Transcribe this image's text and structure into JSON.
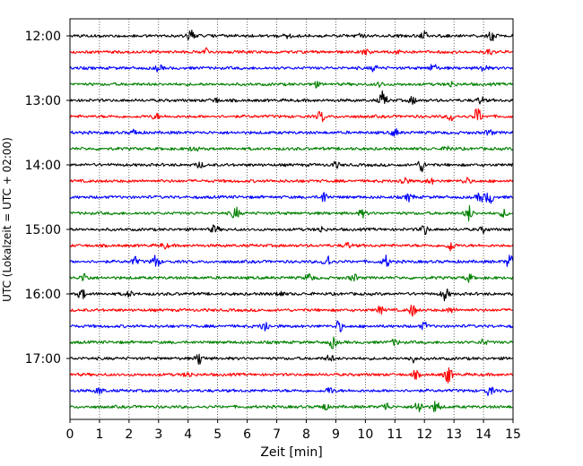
{
  "chart_data": {
    "type": "line",
    "title": "",
    "xlabel": "Zeit  [min]",
    "ylabel": "UTC (Lokalzeit = UTC + 02:00)",
    "xlim": [
      0,
      15
    ],
    "x_ticks": [
      "0",
      "1",
      "2",
      "3",
      "4",
      "5",
      "6",
      "7",
      "8",
      "9",
      "10",
      "11",
      "12",
      "13",
      "14",
      "15"
    ],
    "y_ticks": [
      "12:00",
      "13:00",
      "14:00",
      "15:00",
      "16:00",
      "17:00"
    ],
    "grid": "vertical dotted lines at each minute",
    "trace_interval_minutes": 15,
    "trace_colors": [
      "#000000",
      "#ff0000",
      "#0000ff",
      "#008000"
    ],
    "series": [
      {
        "start": "12:00",
        "color": "#000000",
        "events": [
          [
            4.1,
            0.9
          ],
          [
            7.4,
            0.5
          ],
          [
            12.0,
            0.6
          ],
          [
            14.3,
            0.6
          ],
          [
            9.8,
            0.4
          ]
        ]
      },
      {
        "start": "12:15",
        "color": "#ff0000",
        "events": [
          [
            4.6,
            0.5
          ],
          [
            10.0,
            0.4
          ],
          [
            11.2,
            0.4
          ],
          [
            14.2,
            0.4
          ]
        ]
      },
      {
        "start": "12:30",
        "color": "#0000ff",
        "events": [
          [
            3.0,
            0.4
          ],
          [
            10.3,
            0.4
          ],
          [
            12.3,
            0.6
          ],
          [
            14.0,
            0.5
          ]
        ]
      },
      {
        "start": "12:45",
        "color": "#008000",
        "events": [
          [
            8.3,
            0.4
          ],
          [
            10.5,
            0.3
          ],
          [
            12.9,
            0.4
          ]
        ]
      },
      {
        "start": "13:00",
        "color": "#000000",
        "events": [
          [
            10.6,
            1.3
          ],
          [
            11.6,
            0.5
          ],
          [
            13.9,
            0.5
          ],
          [
            4.9,
            0.4
          ]
        ]
      },
      {
        "start": "13:15",
        "color": "#ff0000",
        "events": [
          [
            8.5,
            0.8
          ],
          [
            12.9,
            0.6
          ],
          [
            13.8,
            1.2
          ],
          [
            2.9,
            0.4
          ]
        ]
      },
      {
        "start": "13:30",
        "color": "#0000ff",
        "events": [
          [
            2.2,
            0.4
          ],
          [
            11.0,
            0.5
          ],
          [
            14.2,
            0.4
          ]
        ]
      },
      {
        "start": "13:45",
        "color": "#008000",
        "events": [
          [
            4.2,
            0.4
          ],
          [
            12.8,
            0.4
          ]
        ]
      },
      {
        "start": "14:00",
        "color": "#000000",
        "events": [
          [
            11.9,
            0.9
          ],
          [
            4.4,
            0.4
          ],
          [
            9.0,
            0.4
          ]
        ]
      },
      {
        "start": "14:15",
        "color": "#ff0000",
        "events": [
          [
            11.3,
            0.7
          ],
          [
            12.2,
            0.4
          ],
          [
            13.4,
            0.5
          ]
        ]
      },
      {
        "start": "14:30",
        "color": "#0000ff",
        "events": [
          [
            8.6,
            0.8
          ],
          [
            11.5,
            0.6
          ],
          [
            14.2,
            1.0
          ],
          [
            13.9,
            0.7
          ]
        ]
      },
      {
        "start": "14:45",
        "color": "#008000",
        "events": [
          [
            5.6,
            0.9
          ],
          [
            9.9,
            0.5
          ],
          [
            13.5,
            1.1
          ],
          [
            14.7,
            0.5
          ]
        ]
      },
      {
        "start": "15:00",
        "color": "#000000",
        "events": [
          [
            4.9,
            0.6
          ],
          [
            8.5,
            0.4
          ],
          [
            12.0,
            0.7
          ],
          [
            14.0,
            0.4
          ]
        ]
      },
      {
        "start": "15:15",
        "color": "#ff0000",
        "events": [
          [
            3.2,
            0.4
          ],
          [
            12.9,
            0.8
          ],
          [
            9.4,
            0.4
          ]
        ]
      },
      {
        "start": "15:30",
        "color": "#0000ff",
        "events": [
          [
            2.9,
            1.0
          ],
          [
            8.7,
            1.0
          ],
          [
            10.7,
            0.8
          ],
          [
            14.9,
            1.1
          ],
          [
            2.2,
            0.6
          ]
        ]
      },
      {
        "start": "15:45",
        "color": "#008000",
        "events": [
          [
            0.5,
            0.7
          ],
          [
            8.1,
            0.6
          ],
          [
            9.6,
            0.5
          ],
          [
            13.5,
            0.5
          ]
        ]
      },
      {
        "start": "16:00",
        "color": "#000000",
        "events": [
          [
            0.4,
            0.7
          ],
          [
            12.7,
            0.9
          ],
          [
            7.1,
            0.4
          ],
          [
            2.0,
            0.4
          ]
        ]
      },
      {
        "start": "16:15",
        "color": "#ff0000",
        "events": [
          [
            11.6,
            0.8
          ],
          [
            12.9,
            0.4
          ],
          [
            10.5,
            0.5
          ]
        ]
      },
      {
        "start": "16:30",
        "color": "#0000ff",
        "events": [
          [
            6.6,
            0.9
          ],
          [
            9.1,
            0.8
          ],
          [
            12.0,
            0.5
          ]
        ]
      },
      {
        "start": "16:45",
        "color": "#008000",
        "events": [
          [
            8.9,
            0.8
          ],
          [
            11.0,
            0.4
          ],
          [
            14.0,
            0.4
          ]
        ]
      },
      {
        "start": "17:00",
        "color": "#000000",
        "events": [
          [
            4.4,
            0.9
          ],
          [
            8.8,
            0.5
          ],
          [
            11.6,
            0.5
          ]
        ]
      },
      {
        "start": "17:15",
        "color": "#ff0000",
        "events": [
          [
            12.8,
            1.3
          ],
          [
            11.7,
            0.5
          ],
          [
            4.0,
            0.4
          ]
        ]
      },
      {
        "start": "17:30",
        "color": "#0000ff",
        "events": [
          [
            1.0,
            0.5
          ],
          [
            8.8,
            0.5
          ],
          [
            14.2,
            0.7
          ]
        ]
      },
      {
        "start": "17:45",
        "color": "#008000",
        "events": [
          [
            11.8,
            1.0
          ],
          [
            12.4,
            0.9
          ],
          [
            10.7,
            0.6
          ],
          [
            8.6,
            0.5
          ]
        ]
      }
    ]
  }
}
